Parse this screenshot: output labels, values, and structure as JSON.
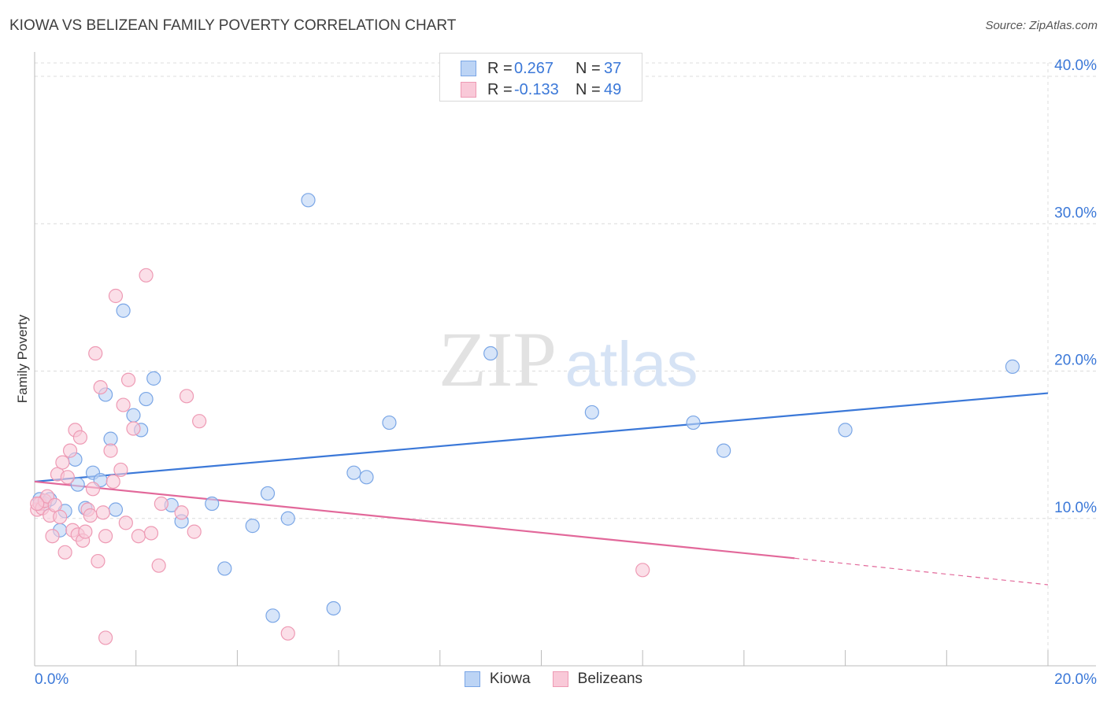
{
  "title": "KIOWA VS BELIZEAN FAMILY POVERTY CORRELATION CHART",
  "source": "Source: ZipAtlas.com",
  "watermark": {
    "zip": "ZIP",
    "atlas": "atlas"
  },
  "legend": {
    "rows": [
      {
        "r_label": "R =",
        "r_value": "0.267",
        "n_label": "N =",
        "n_value": "37",
        "fill": "#bcd4f5",
        "stroke": "#7aa6e6"
      },
      {
        "r_label": "R =",
        "r_value": "-0.133",
        "n_label": "N =",
        "n_value": "49",
        "fill": "#f9c9d8",
        "stroke": "#ee9ab4"
      }
    ]
  },
  "bottom_legend": [
    {
      "label": "Kiowa",
      "fill": "#bcd4f5",
      "stroke": "#7aa6e6"
    },
    {
      "label": "Belizeans",
      "fill": "#f9c9d8",
      "stroke": "#ee9ab4"
    }
  ],
  "chart_data": {
    "type": "scatter",
    "title": "KIOWA VS BELIZEAN FAMILY POVERTY CORRELATION CHART",
    "xlabel": "",
    "ylabel": "Family Poverty",
    "xlim": [
      0,
      20
    ],
    "ylim": [
      0,
      40
    ],
    "x_tick_labels": [
      "0.0%",
      "20.0%"
    ],
    "y_ticks": [
      10,
      20,
      30,
      40
    ],
    "y_tick_labels": [
      "10.0%",
      "20.0%",
      "30.0%",
      "40.0%"
    ],
    "grid": true,
    "series": [
      {
        "name": "Kiowa",
        "color": "#3b78d8",
        "fill": "#bcd4f5",
        "stroke": "#7aa6e6",
        "points": [
          [
            0.1,
            11.3
          ],
          [
            0.2,
            11.0
          ],
          [
            0.3,
            11.3
          ],
          [
            0.5,
            9.2
          ],
          [
            0.6,
            10.5
          ],
          [
            0.8,
            14.0
          ],
          [
            0.85,
            12.3
          ],
          [
            1.0,
            10.7
          ],
          [
            1.15,
            13.1
          ],
          [
            1.3,
            12.6
          ],
          [
            1.4,
            18.4
          ],
          [
            1.5,
            15.4
          ],
          [
            1.6,
            10.6
          ],
          [
            1.75,
            24.1
          ],
          [
            1.95,
            17.0
          ],
          [
            2.1,
            16.0
          ],
          [
            2.2,
            18.1
          ],
          [
            2.35,
            19.5
          ],
          [
            2.7,
            10.9
          ],
          [
            2.9,
            9.8
          ],
          [
            3.5,
            11.0
          ],
          [
            3.75,
            6.6
          ],
          [
            4.3,
            9.5
          ],
          [
            4.6,
            11.7
          ],
          [
            4.7,
            3.4
          ],
          [
            5.0,
            10.0
          ],
          [
            5.4,
            31.6
          ],
          [
            5.9,
            3.9
          ],
          [
            6.3,
            13.1
          ],
          [
            6.55,
            12.8
          ],
          [
            7.0,
            16.5
          ],
          [
            9.0,
            21.2
          ],
          [
            11.0,
            17.2
          ],
          [
            13.0,
            16.5
          ],
          [
            13.6,
            14.6
          ],
          [
            16.0,
            16.0
          ],
          [
            19.3,
            20.3
          ]
        ],
        "trend": {
          "x": [
            0,
            20
          ],
          "y": [
            12.5,
            18.5
          ]
        }
      },
      {
        "name": "Belizeans",
        "color": "#e2689a",
        "fill": "#f9c9d8",
        "stroke": "#ee9ab4",
        "points": [
          [
            0.05,
            10.6
          ],
          [
            0.1,
            11.0
          ],
          [
            0.15,
            10.7
          ],
          [
            0.2,
            11.2
          ],
          [
            0.25,
            11.5
          ],
          [
            0.3,
            10.2
          ],
          [
            0.35,
            8.8
          ],
          [
            0.4,
            10.9
          ],
          [
            0.45,
            13.0
          ],
          [
            0.5,
            10.1
          ],
          [
            0.55,
            13.8
          ],
          [
            0.6,
            7.7
          ],
          [
            0.65,
            12.8
          ],
          [
            0.7,
            14.6
          ],
          [
            0.75,
            9.2
          ],
          [
            0.8,
            16.0
          ],
          [
            0.85,
            8.9
          ],
          [
            0.9,
            15.5
          ],
          [
            0.95,
            8.5
          ],
          [
            1.0,
            9.1
          ],
          [
            1.05,
            10.6
          ],
          [
            1.1,
            10.2
          ],
          [
            1.15,
            12.0
          ],
          [
            1.2,
            21.2
          ],
          [
            1.25,
            7.1
          ],
          [
            1.3,
            18.9
          ],
          [
            1.35,
            10.4
          ],
          [
            1.4,
            8.8
          ],
          [
            1.5,
            14.6
          ],
          [
            1.55,
            12.5
          ],
          [
            1.6,
            25.1
          ],
          [
            1.7,
            13.3
          ],
          [
            1.75,
            17.7
          ],
          [
            1.8,
            9.7
          ],
          [
            1.85,
            19.4
          ],
          [
            1.95,
            16.1
          ],
          [
            2.05,
            8.8
          ],
          [
            2.2,
            26.5
          ],
          [
            2.3,
            9.0
          ],
          [
            2.45,
            6.8
          ],
          [
            2.5,
            11.0
          ],
          [
            2.9,
            10.4
          ],
          [
            3.0,
            18.3
          ],
          [
            3.15,
            9.1
          ],
          [
            3.25,
            16.6
          ],
          [
            1.4,
            1.9
          ],
          [
            5.0,
            2.2
          ],
          [
            12.0,
            6.5
          ],
          [
            0.05,
            11.0
          ]
        ],
        "trend": {
          "x": [
            0,
            15
          ],
          "y": [
            12.5,
            7.3
          ]
        },
        "trend_dashed": {
          "x": [
            15,
            20
          ],
          "y": [
            7.3,
            5.5
          ]
        }
      }
    ]
  }
}
